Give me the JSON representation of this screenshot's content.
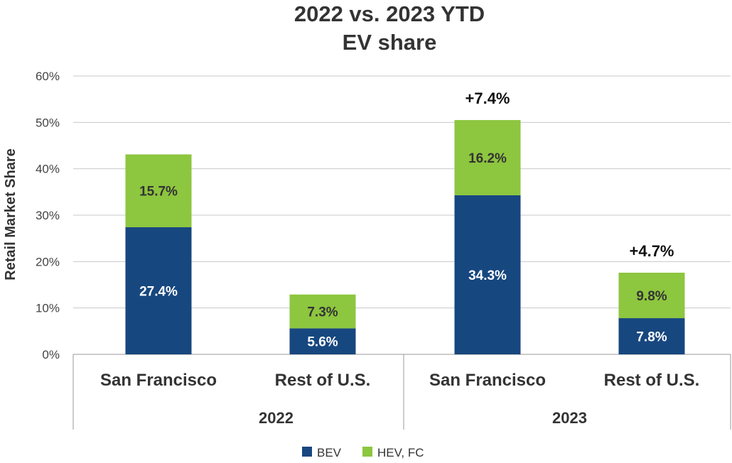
{
  "chart_data": {
    "type": "bar",
    "stacked": true,
    "title": [
      "2022 vs. 2023 YTD",
      "EV share"
    ],
    "ylabel": "Retail Market Share",
    "ylim": [
      0,
      60
    ],
    "yticks": [
      "0%",
      "10%",
      "20%",
      "30%",
      "40%",
      "50%",
      "60%"
    ],
    "grid": true,
    "legend_position": "bottom",
    "groups": [
      "2022",
      "2023"
    ],
    "categories": [
      "San Francisco",
      "Rest of U.S.",
      "San Francisco",
      "Rest of U.S."
    ],
    "category_group": [
      "2022",
      "2022",
      "2023",
      "2023"
    ],
    "series": [
      {
        "name": "BEV",
        "color": "#17477f",
        "label_color": "#ffffff",
        "values": [
          27.4,
          5.6,
          34.3,
          7.8
        ],
        "labels": [
          "27.4%",
          "5.6%",
          "34.3%",
          "7.8%"
        ]
      },
      {
        "name": "HEV, FC",
        "color": "#8dc63f",
        "label_color": "#333333",
        "values": [
          15.7,
          7.3,
          16.2,
          9.8
        ],
        "labels": [
          "15.7%",
          "7.3%",
          "16.2%",
          "9.8%"
        ]
      }
    ],
    "annotations": [
      "",
      "",
      "+7.4%",
      "+4.7%"
    ]
  }
}
